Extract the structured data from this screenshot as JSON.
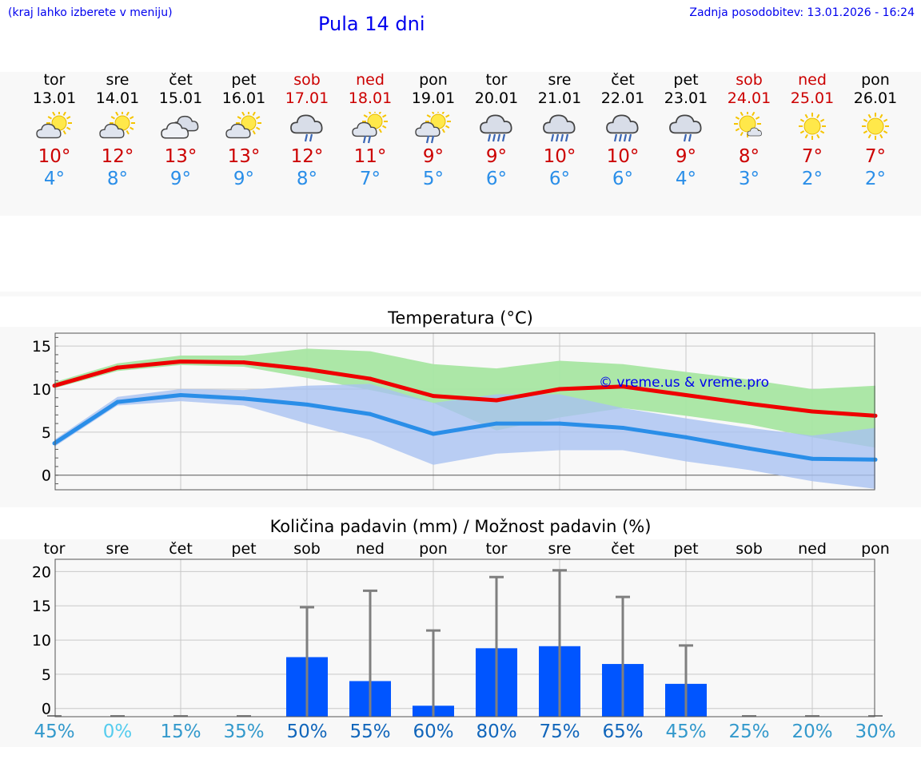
{
  "header": {
    "hint": "(kraj lahko izberete v meniju)",
    "title": "Pula 14 dni",
    "updated": "Zadnja posodobitev: 13.01.2026 - 16:24"
  },
  "days": [
    {
      "dow": "tor",
      "date": "13.01",
      "weekend": false,
      "icon": "sun-cloud-icon",
      "tmax": "10°",
      "tmin": "4°"
    },
    {
      "dow": "sre",
      "date": "14.01",
      "weekend": false,
      "icon": "sun-cloud-icon",
      "tmax": "12°",
      "tmin": "8°"
    },
    {
      "dow": "čet",
      "date": "15.01",
      "weekend": false,
      "icon": "cloudy-icon",
      "tmax": "13°",
      "tmin": "9°"
    },
    {
      "dow": "pet",
      "date": "16.01",
      "weekend": false,
      "icon": "sun-cloud-icon",
      "tmax": "13°",
      "tmin": "9°"
    },
    {
      "dow": "sob",
      "date": "17.01",
      "weekend": true,
      "icon": "cloud-rain-icon",
      "tmax": "12°",
      "tmin": "8°"
    },
    {
      "dow": "ned",
      "date": "18.01",
      "weekend": true,
      "icon": "sun-cloud-rain-icon",
      "tmax": "11°",
      "tmin": "7°"
    },
    {
      "dow": "pon",
      "date": "19.01",
      "weekend": false,
      "icon": "sun-cloud-rain-icon",
      "tmax": "9°",
      "tmin": "5°"
    },
    {
      "dow": "tor",
      "date": "20.01",
      "weekend": false,
      "icon": "cloud-heavy-rain-icon",
      "tmax": "9°",
      "tmin": "6°"
    },
    {
      "dow": "sre",
      "date": "21.01",
      "weekend": false,
      "icon": "cloud-heavy-rain-icon",
      "tmax": "10°",
      "tmin": "6°"
    },
    {
      "dow": "čet",
      "date": "22.01",
      "weekend": false,
      "icon": "cloud-heavy-rain-icon",
      "tmax": "10°",
      "tmin": "6°"
    },
    {
      "dow": "pet",
      "date": "23.01",
      "weekend": false,
      "icon": "cloud-rain-icon",
      "tmax": "9°",
      "tmin": "4°"
    },
    {
      "dow": "sob",
      "date": "24.01",
      "weekend": true,
      "icon": "sun-small-cloud-icon",
      "tmax": "8°",
      "tmin": "3°"
    },
    {
      "dow": "ned",
      "date": "25.01",
      "weekend": true,
      "icon": "sun-icon",
      "tmax": "7°",
      "tmin": "2°"
    },
    {
      "dow": "pon",
      "date": "26.01",
      "weekend": false,
      "icon": "sun-icon",
      "tmax": "7°",
      "tmin": "2°"
    }
  ],
  "colors": {
    "max": "#ee0000",
    "min": "#2a8ee8",
    "max_band": "#a8e6a2",
    "min_band": "#a9c2f1",
    "bar": "#0055ff",
    "whisker": "#7f7f7f"
  },
  "chart_data": [
    {
      "type": "line",
      "title": "Temperatura (°C)",
      "watermark": "© vreme.us & vreme.pro",
      "x": [
        0,
        1,
        2,
        3,
        4,
        5,
        6,
        7,
        8,
        9,
        10,
        11,
        12,
        13
      ],
      "ylim": [
        -1.7,
        16.5
      ],
      "yticks": [
        0,
        5,
        10,
        15
      ],
      "series": [
        {
          "name": "max",
          "values": [
            10.4,
            12.5,
            13.2,
            13.1,
            12.3,
            11.2,
            9.2,
            8.7,
            10.0,
            10.3,
            9.3,
            8.3,
            7.4,
            6.9
          ],
          "band_low": [
            10.1,
            12.1,
            12.8,
            12.6,
            11.3,
            9.9,
            8.4,
            5.2,
            6.7,
            7.8,
            6.9,
            5.9,
            4.4,
            3.2
          ],
          "band_high": [
            10.8,
            13.0,
            13.9,
            13.9,
            14.7,
            14.4,
            12.9,
            12.4,
            13.3,
            12.9,
            12.0,
            11.1,
            10.0,
            10.4
          ]
        },
        {
          "name": "min",
          "values": [
            3.7,
            8.5,
            9.3,
            8.9,
            8.2,
            7.1,
            4.8,
            6.0,
            6.0,
            5.5,
            4.4,
            3.1,
            1.9,
            1.8
          ],
          "band_low": [
            3.3,
            8.1,
            8.6,
            8.1,
            6.0,
            4.1,
            1.2,
            2.5,
            2.9,
            2.9,
            1.6,
            0.6,
            -0.7,
            -1.6
          ],
          "band_high": [
            4.1,
            9.1,
            10.0,
            9.9,
            10.4,
            10.6,
            8.4,
            9.4,
            9.4,
            7.8,
            6.6,
            5.5,
            4.6,
            5.5
          ]
        }
      ]
    },
    {
      "type": "bar",
      "title": "Količina padavin (mm) / Možnost padavin (%)",
      "categories": [
        "tor",
        "sre",
        "čet",
        "pet",
        "sob",
        "ned",
        "pon",
        "tor",
        "sre",
        "čet",
        "pet",
        "sob",
        "ned",
        "pon"
      ],
      "values": [
        0,
        0,
        0,
        0,
        7.5,
        4.0,
        0.4,
        8.8,
        9.1,
        6.5,
        3.6,
        0,
        0,
        0
      ],
      "whisker_high": [
        0,
        0,
        0,
        0,
        14.8,
        17.2,
        11.4,
        19.2,
        20.2,
        16.3,
        9.2,
        0,
        0,
        0
      ],
      "probability": [
        "45%",
        "0%",
        "15%",
        "35%",
        "50%",
        "55%",
        "60%",
        "80%",
        "75%",
        "65%",
        "45%",
        "25%",
        "20%",
        "30%"
      ],
      "probability_colors": [
        "#3399cc",
        "#55ccee",
        "#3399cc",
        "#3399cc",
        "#1166bb",
        "#1166bb",
        "#1166bb",
        "#1166bb",
        "#1166bb",
        "#1166bb",
        "#3399cc",
        "#3399cc",
        "#3399cc",
        "#3399cc"
      ],
      "ylim": [
        -1.2,
        21.8
      ],
      "yticks": [
        0,
        5,
        10,
        15,
        20
      ],
      "xlabel": "",
      "ylabel": ""
    }
  ]
}
